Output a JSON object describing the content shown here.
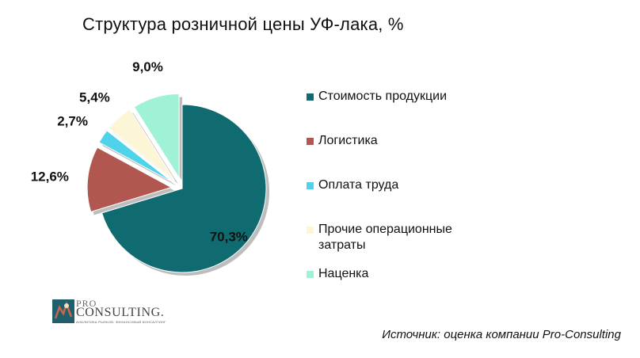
{
  "chart_data": {
    "type": "pie",
    "title": "Структура розничной цены УФ-лака, %",
    "slices": [
      {
        "name": "Стоимость продукции",
        "value": 70.3,
        "label": "70,3%",
        "color": "#0f6b70",
        "exploded": false
      },
      {
        "name": "Логистика",
        "value": 12.6,
        "label": "12,6%",
        "color": "#b2574f",
        "exploded": true
      },
      {
        "name": "Оплата труда",
        "value": 2.7,
        "label": "2,7%",
        "color": "#4fd3ea",
        "exploded": true
      },
      {
        "name": "Прочие операционные затраты",
        "value": 5.4,
        "label": "5,4%",
        "color": "#fdf6d6",
        "exploded": true
      },
      {
        "name": "Наценка",
        "value": 9.0,
        "label": "9,0%",
        "color": "#9ff2d5",
        "exploded": true
      }
    ],
    "legend_position": "right"
  },
  "legend": {
    "items": [
      {
        "label": "Стоимость продукции",
        "color": "#0f6b70"
      },
      {
        "label": "Логистика",
        "color": "#b2574f"
      },
      {
        "label": "Оплата труда",
        "color": "#4fd3ea"
      },
      {
        "label": "Прочие операционные затраты",
        "color": "#fdf6d6"
      },
      {
        "label": "Наценка",
        "color": "#9ff2d5"
      }
    ]
  },
  "logo": {
    "pro": "PRO",
    "consulting": "CONSULTING.",
    "tagline": "АНАЛИТИКА РЫНКОВ. ФИНАНСОВЫЙ КОНСАЛТИНГ"
  },
  "source": "Источник: оценка компании Pro-Consulting"
}
